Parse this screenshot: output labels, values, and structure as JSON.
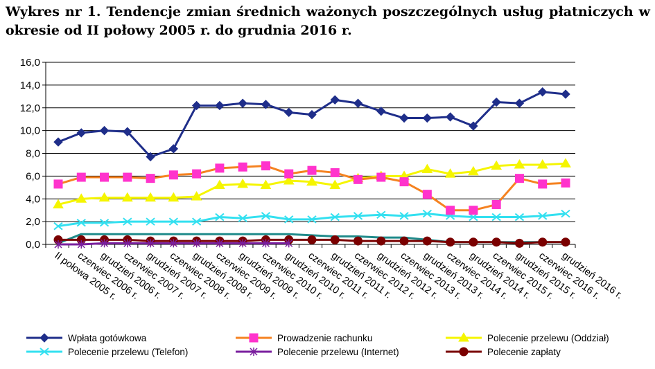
{
  "title": "Wykres nr 1. Tendencje zmian średnich ważonych poszczególnych usług płatniczych w okresie od II połowy 2005 r. do grudnia 2016 r.",
  "chart_data": {
    "type": "line",
    "title": "Wykres nr 1. Tendencje zmian średnich ważonych poszczególnych usług płatniczych w okresie od II połowy 2005 r. do grudnia 2016 r.",
    "xlabel": "",
    "ylabel": "",
    "ylim": [
      0,
      16
    ],
    "yticks": [
      "0,0",
      "2,0",
      "4,0",
      "6,0",
      "8,0",
      "10,0",
      "12,0",
      "14,0",
      "16,0"
    ],
    "grid": true,
    "legend": "bottom",
    "categories": [
      "II połowa 2005 r.",
      "czerwiec 2006 r.",
      "grudzień 2006 r.",
      "czerwiec 2007 r.",
      "grudzień 2007 r.",
      "czerwiec 2008 r.",
      "grudzień 2008 r.",
      "czerwiec 2009 r.",
      "grudzień 2009 r.",
      "czerwiec 2010 r.",
      "grudzień 2010 r.",
      "czerwiec 2011 r.",
      "grudzień 2011 r.",
      "czerwiec 2012 r.",
      "grudzień 2012 r.",
      "czerwiec 2013 r.",
      "grudzień 2013 r.",
      "czerwiec 2014 r.",
      "grudzień 2014 r.",
      "czerwiec 2015 r.",
      "grudzień 2015 r.",
      "czerwiec 2016 r.",
      "grudzień 2016 r."
    ],
    "series": [
      {
        "name": "Wpłata gotówkowa",
        "color": "#1F2E8A",
        "marker": "diamond",
        "values": [
          9.0,
          9.8,
          10.0,
          9.9,
          7.7,
          8.4,
          12.2,
          12.2,
          12.4,
          12.3,
          11.6,
          11.4,
          12.7,
          12.4,
          11.7,
          11.1,
          11.1,
          11.2,
          10.4,
          12.5,
          12.4,
          13.4,
          13.2
        ]
      },
      {
        "name": "Prowadzenie rachunku",
        "color": "#F58220",
        "marker": "square",
        "markerFill": "#FF33CC",
        "values": [
          5.3,
          5.9,
          5.9,
          5.9,
          5.8,
          6.1,
          6.2,
          6.7,
          6.8,
          6.9,
          6.2,
          6.5,
          6.3,
          5.7,
          5.9,
          5.5,
          4.4,
          3.0,
          3.0,
          3.5,
          5.8,
          5.3,
          5.4
        ]
      },
      {
        "name": "Polecenie przelewu (Oddział)",
        "color": "#F5F500",
        "marker": "triangle",
        "values": [
          3.5,
          4.0,
          4.1,
          4.1,
          4.1,
          4.1,
          4.2,
          5.2,
          5.3,
          5.2,
          5.6,
          5.5,
          5.2,
          5.8,
          6.0,
          6.0,
          6.6,
          6.2,
          6.4,
          6.9,
          7.0,
          7.0,
          7.1
        ]
      },
      {
        "name": "Polecenie przelewu (Telefon)",
        "color": "#33E0F0",
        "marker": "x",
        "values": [
          1.6,
          1.9,
          1.9,
          2.0,
          2.0,
          2.0,
          2.0,
          2.4,
          2.3,
          2.5,
          2.2,
          2.2,
          2.4,
          2.5,
          2.6,
          2.5,
          2.7,
          2.5,
          2.4,
          2.4,
          2.4,
          2.5,
          2.7
        ]
      },
      {
        "name": "Polecenie przelewu (Internet)",
        "color": "#7A1F9E",
        "marker": "star",
        "values": [
          0.0,
          0.0,
          0.1,
          0.1,
          0.1,
          0.1,
          0.1,
          0.1,
          0.1,
          0.1,
          0.1,
          null,
          null,
          null,
          null,
          null,
          null,
          null,
          null,
          null,
          null,
          null,
          null
        ]
      },
      {
        "name": "Polecenie zapłaty",
        "color": "#7A0000",
        "marker": "circle",
        "values": [
          0.4,
          0.4,
          0.4,
          0.4,
          0.3,
          0.3,
          0.3,
          0.3,
          0.3,
          0.4,
          0.4,
          0.4,
          0.4,
          0.3,
          0.3,
          0.3,
          0.3,
          0.2,
          0.2,
          0.2,
          0.1,
          0.2,
          0.2
        ]
      },
      {
        "name": "",
        "color": "#1F8A8A",
        "marker": "none",
        "values": [
          0.1,
          0.9,
          0.9,
          0.9,
          0.9,
          0.9,
          0.9,
          0.9,
          0.9,
          0.9,
          0.9,
          0.8,
          0.7,
          0.7,
          0.6,
          0.6,
          0.4,
          0.2,
          0.2,
          0.2,
          0.2,
          0.2,
          0.2
        ]
      }
    ]
  }
}
